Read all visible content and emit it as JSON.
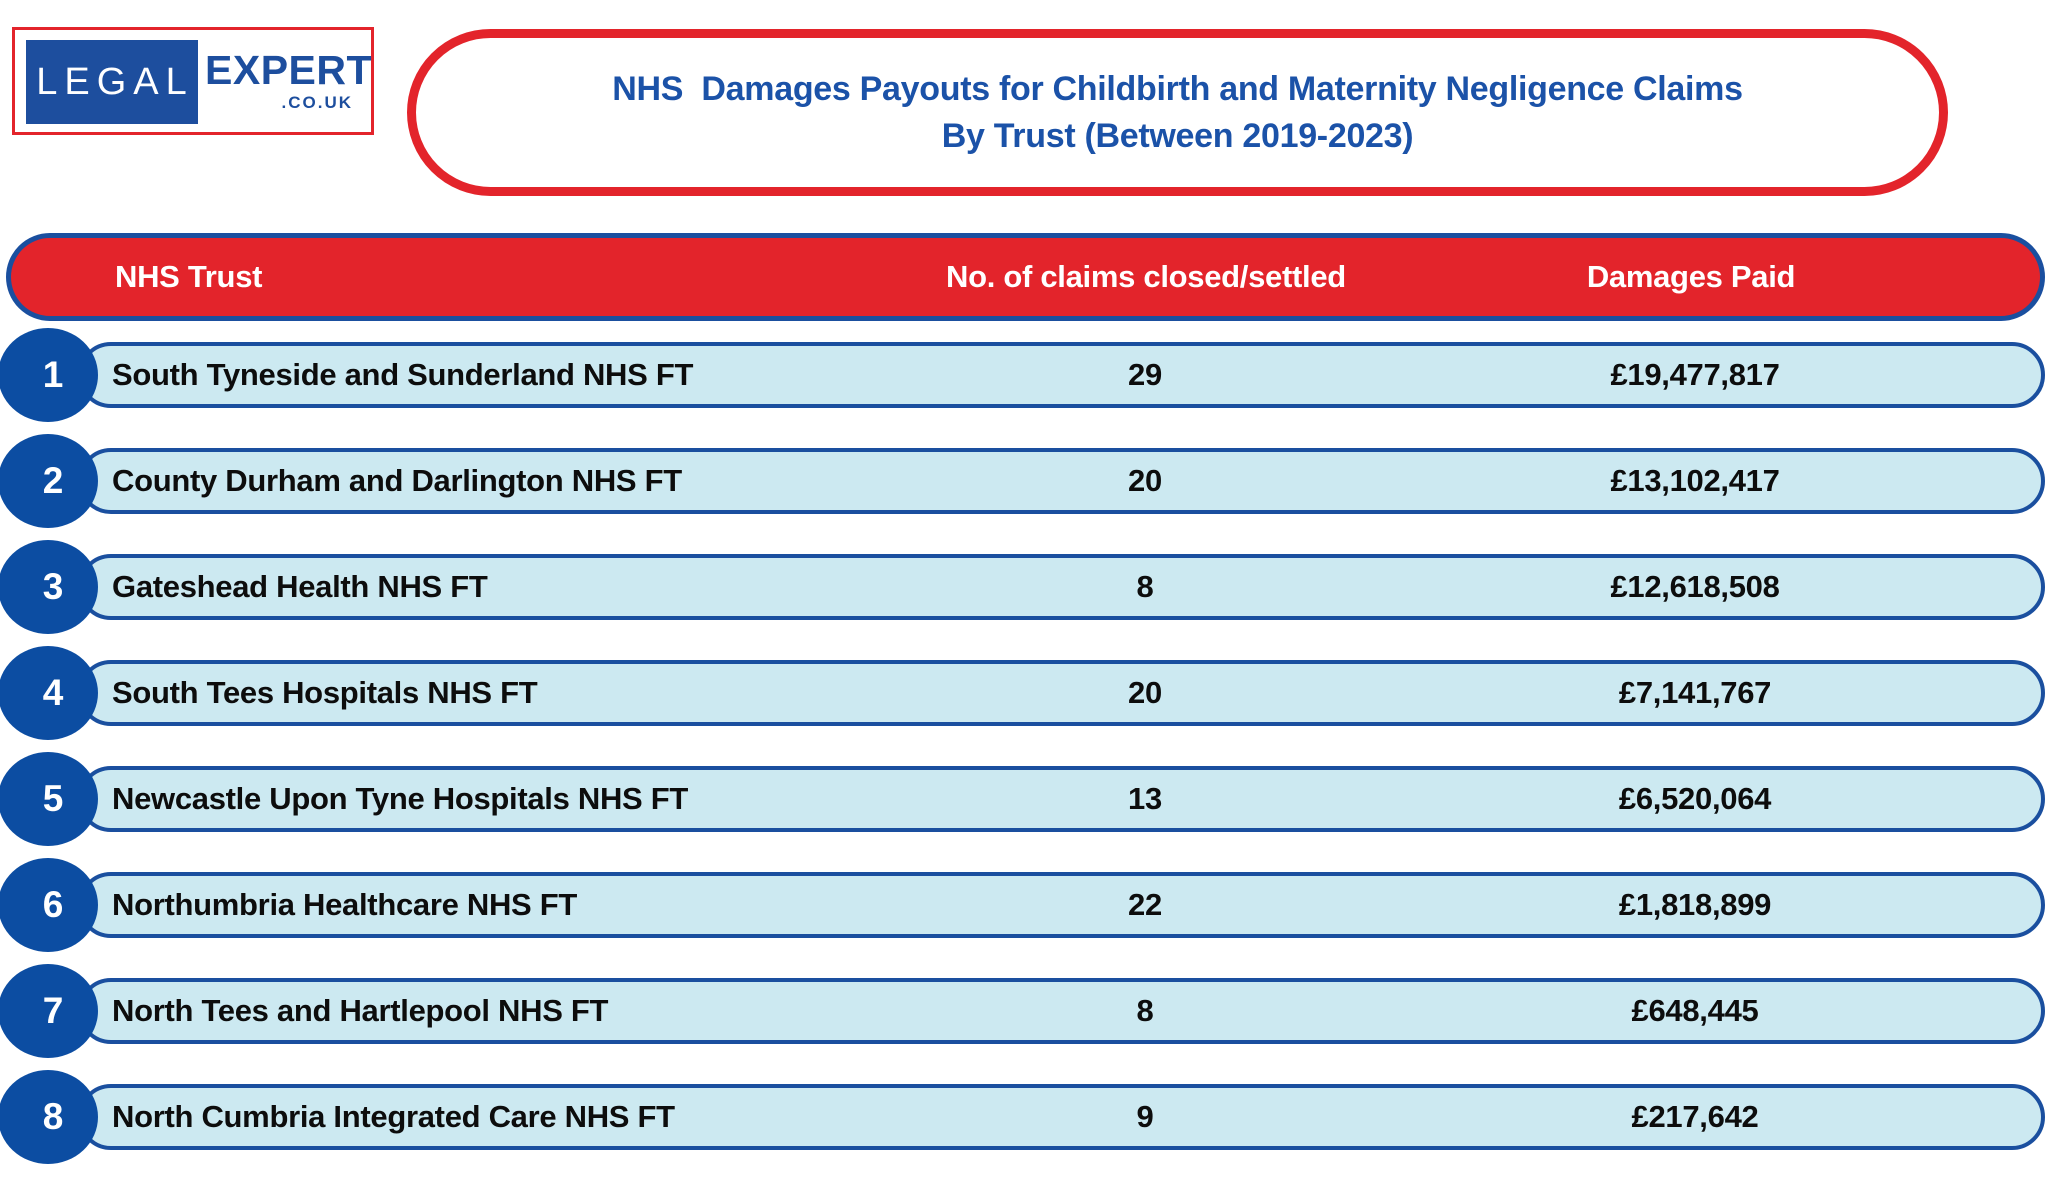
{
  "logo": {
    "word1": "LEGAL",
    "word2": "EXPERT",
    "word3": ".CO.UK"
  },
  "title": {
    "line1": "NHS  Damages Payouts for Childbirth and Maternity Negligence Claims",
    "line2": "By Trust (Between 2019-2023)"
  },
  "table": {
    "headers": {
      "trust": "NHS Trust",
      "claims": "No. of claims closed/settled",
      "damages": "Damages Paid"
    },
    "rows": [
      {
        "rank": "1",
        "trust": "South Tyneside and Sunderland NHS FT",
        "claims": "29",
        "damages": "£19,477,817"
      },
      {
        "rank": "2",
        "trust": "County Durham and Darlington NHS FT",
        "claims": "20",
        "damages": "£13,102,417"
      },
      {
        "rank": "3",
        "trust": "Gateshead Health NHS FT",
        "claims": "8",
        "damages": "£12,618,508"
      },
      {
        "rank": "4",
        "trust": "South Tees Hospitals NHS FT",
        "claims": "20",
        "damages": "£7,141,767"
      },
      {
        "rank": "5",
        "trust": "Newcastle Upon Tyne Hospitals NHS FT",
        "claims": "13",
        "damages": "£6,520,064"
      },
      {
        "rank": "6",
        "trust": "Northumbria Healthcare NHS FT",
        "claims": "22",
        "damages": "£1,818,899"
      },
      {
        "rank": "7",
        "trust": "North Tees and Hartlepool NHS FT",
        "claims": "8",
        "damages": "£648,445"
      },
      {
        "rank": "8",
        "trust": "North Cumbria Integrated Care NHS FT",
        "claims": "9",
        "damages": "£217,642"
      }
    ]
  },
  "colors": {
    "red": "#e3242b",
    "border_blue": "#1a4f9f",
    "circle_blue": "#0c4da2",
    "row_fill": "#cce9f1",
    "title_blue": "#1b52a8",
    "logo_blue": "#1d4e9e"
  },
  "chart_data": {
    "type": "table",
    "title": "NHS  Damages Payouts for Childbirth and Maternity Negligence Claims By Trust (Between 2019-2023)",
    "columns": [
      "NHS Trust",
      "No. of claims closed/settled",
      "Damages Paid"
    ],
    "categories": [
      "South Tyneside and Sunderland NHS FT",
      "County Durham and Darlington NHS FT",
      "Gateshead Health NHS FT",
      "South Tees Hospitals NHS FT",
      "Newcastle Upon Tyne Hospitals NHS FT",
      "Northumbria Healthcare NHS FT",
      "North Tees and Hartlepool NHS FT",
      "North Cumbria Integrated Care NHS FT"
    ],
    "series": [
      {
        "name": "No. of claims closed/settled",
        "values": [
          29,
          20,
          8,
          20,
          13,
          22,
          8,
          9
        ]
      },
      {
        "name": "Damages Paid (GBP)",
        "values": [
          19477817,
          13102417,
          12618508,
          7141767,
          6520064,
          1818899,
          648445,
          217642
        ]
      }
    ]
  }
}
